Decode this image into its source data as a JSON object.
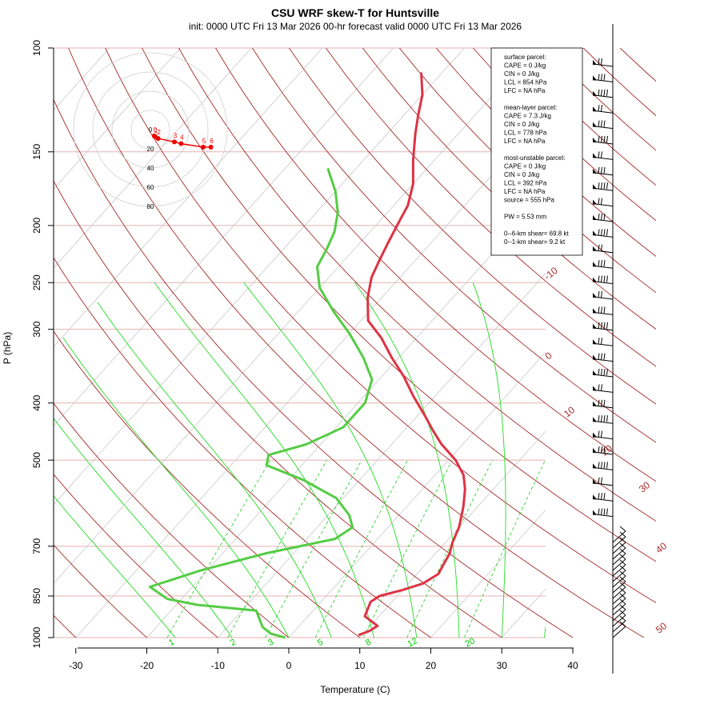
{
  "title": "CSU WRF skew-T for Huntsville",
  "subtitle": "init: 0000 UTC Fri 13 Mar 2026     00-hr forecast valid 0000 UTC Fri 13 Mar 2026",
  "colors": {
    "temperature": "#dd3344",
    "dewpoint": "#55cc44",
    "dry_adiabat": "#a52a2a",
    "moist_adiabat": "#22dd22",
    "mixing_ratio": "#22cc22",
    "isotherm": "#c8c8c8",
    "isobar": "#e8b0b0",
    "hodograph": "#ee0000"
  },
  "info_box": {
    "lines": [
      "surface parcel:",
      "CAPE = 0 J/kg",
      "CIN = 0 J/kg",
      "LCL = 854 hPa",
      "LFC = NA hPa",
      "",
      "mean-layer parcel:",
      "CAPE = 7.3 J/kg",
      "CIN = 0 J/kg",
      "LCL = 778 hPa",
      "LFC = NA hPa",
      "",
      "most-unstable parcel:",
      "CAPE = 0 J/kg",
      "CIN = 0 J/kg",
      "LCL = 392 hPa",
      "LFC = NA hPa",
      "source = 555 hPa",
      "",
      "PW =  5.53 mm",
      "",
      "0--6-km shear= 69.8 kt",
      "0--1-km shear= 9.2 kt"
    ]
  },
  "hodograph": {
    "ring_labels": [
      "0",
      "20",
      "40",
      "60",
      "80"
    ],
    "point_labels": [
      "0",
      "1",
      "2",
      "3",
      "4",
      "5",
      "6"
    ]
  },
  "chart_data": {
    "type": "line",
    "title": "CSU WRF skew-T for Huntsville",
    "xlabel": "Temperature (C)",
    "ylabel": "P (hPa)",
    "xlim": [
      -33,
      44
    ],
    "ylim": [
      1000,
      100
    ],
    "y_scale": "log",
    "x_ticks": [
      "-30",
      "-20",
      "-10",
      "0",
      "10",
      "20",
      "30",
      "40"
    ],
    "y_ticks": [
      "100",
      "150",
      "200",
      "250",
      "300",
      "400",
      "500",
      "700",
      "850",
      "1000"
    ],
    "theta_labels": [
      "-10",
      "0",
      "10",
      "20",
      "30",
      "40",
      "50"
    ],
    "mixing_ratio_labels": [
      "1",
      "2",
      "3",
      "5",
      "8",
      "12",
      "20"
    ],
    "series": [
      {
        "name": "temperature",
        "points": [
          [
            9.5,
            990
          ],
          [
            10.5,
            975
          ],
          [
            11,
            955
          ],
          [
            8,
            920
          ],
          [
            7,
            870
          ],
          [
            7.5,
            850
          ],
          [
            10,
            830
          ],
          [
            12,
            810
          ],
          [
            13,
            780
          ],
          [
            12.5,
            750
          ],
          [
            12,
            720
          ],
          [
            11,
            690
          ],
          [
            10,
            650
          ],
          [
            8,
            600
          ],
          [
            6,
            560
          ],
          [
            4,
            530
          ],
          [
            1,
            500
          ],
          [
            -3,
            470
          ],
          [
            -6,
            445
          ],
          [
            -9,
            420
          ],
          [
            -13,
            390
          ],
          [
            -17,
            360
          ],
          [
            -21,
            335
          ],
          [
            -25,
            310
          ],
          [
            -29,
            290
          ],
          [
            -32,
            265
          ],
          [
            -34,
            245
          ],
          [
            -35,
            230
          ],
          [
            -36,
            215
          ],
          [
            -37,
            200
          ],
          [
            -38,
            185
          ],
          [
            -40,
            170
          ],
          [
            -43,
            155
          ],
          [
            -46,
            140
          ],
          [
            -48,
            130
          ],
          [
            -50,
            120
          ],
          [
            -53,
            110
          ]
        ]
      },
      {
        "name": "dewpoint",
        "points": [
          [
            -0.5,
            1000
          ],
          [
            -3,
            985
          ],
          [
            -5,
            960
          ],
          [
            -6,
            940
          ],
          [
            -8,
            900
          ],
          [
            -17,
            880
          ],
          [
            -22,
            860
          ],
          [
            -26,
            820
          ],
          [
            -24,
            800
          ],
          [
            -21,
            770
          ],
          [
            -14,
            720
          ],
          [
            -6,
            680
          ],
          [
            -5,
            650
          ],
          [
            -7,
            620
          ],
          [
            -11,
            580
          ],
          [
            -18,
            540
          ],
          [
            -25,
            510
          ],
          [
            -26,
            490
          ],
          [
            -22,
            470
          ],
          [
            -19,
            440
          ],
          [
            -19,
            400
          ],
          [
            -21,
            365
          ],
          [
            -25,
            335
          ],
          [
            -30,
            305
          ],
          [
            -35,
            280
          ],
          [
            -40,
            255
          ],
          [
            -43,
            235
          ],
          [
            -44,
            218
          ],
          [
            -45,
            205
          ],
          [
            -47,
            190
          ],
          [
            -50,
            175
          ],
          [
            -54,
            160
          ]
        ]
      }
    ],
    "hodograph_points": [
      [
        -2,
        4
      ],
      [
        -1,
        5
      ],
      [
        1,
        8
      ],
      [
        5,
        25
      ],
      [
        7,
        32
      ],
      [
        11,
        55
      ],
      [
        11,
        63
      ]
    ]
  }
}
